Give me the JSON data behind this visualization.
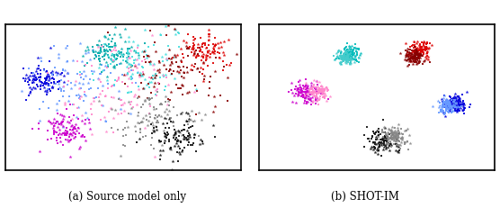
{
  "title_a": "(a) Source model only",
  "title_b": "(b) SHOT-IM",
  "figsize": [
    5.56,
    2.32
  ],
  "dpi": 100,
  "background_color": "#ffffff",
  "colors_a": [
    "#0000dd",
    "#6699ff",
    "#00aaaa",
    "#44dddd",
    "#dd0000",
    "#880000",
    "#ff88cc",
    "#cc00cc",
    "#888888",
    "#111111"
  ],
  "colors_b": [
    "#00bbbb",
    "#dd0000",
    "#880000",
    "#cc00cc",
    "#ff88cc",
    "#0000dd",
    "#6699ff",
    "#111111",
    "#888888",
    "#44cccc"
  ],
  "seed": 42,
  "n_dots": 60,
  "n_stars": 50
}
